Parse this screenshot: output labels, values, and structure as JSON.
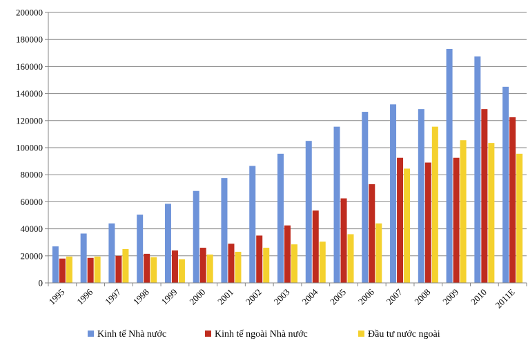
{
  "chart_data": {
    "type": "bar",
    "categories": [
      "1995",
      "1996",
      "1997",
      "1998",
      "1999",
      "2000",
      "2001",
      "2002",
      "2003",
      "2004",
      "2005",
      "2006",
      "2007",
      "2008",
      "2009",
      "2010",
      "2011E"
    ],
    "series": [
      {
        "name": "Kinh tế Nhà nước",
        "color": "#6e93d9",
        "values": [
          27000,
          36500,
          44000,
          50500,
          58500,
          68000,
          77500,
          86500,
          95500,
          105000,
          115500,
          126500,
          132000,
          128500,
          173000,
          167500,
          145000
        ]
      },
      {
        "name": "Kinh tế ngoài Nhà nước",
        "color": "#bf2c1f",
        "values": [
          18000,
          18500,
          20000,
          21500,
          24000,
          26000,
          29000,
          35000,
          42500,
          53500,
          62500,
          73000,
          92500,
          89000,
          92500,
          128500,
          122500
        ]
      },
      {
        "name": "Đầu tư nước ngoài",
        "color": "#f4d12e",
        "values": [
          19500,
          19500,
          25000,
          19000,
          17500,
          21000,
          23000,
          26000,
          28500,
          30500,
          36000,
          44000,
          84500,
          115500,
          105500,
          103500,
          95500
        ]
      }
    ],
    "ylim": [
      0,
      200000
    ],
    "yticks": [
      0,
      20000,
      40000,
      60000,
      80000,
      100000,
      120000,
      140000,
      160000,
      180000,
      200000
    ],
    "grid": true,
    "legend": "bottom",
    "title": "",
    "xlabel": "",
    "ylabel": ""
  }
}
